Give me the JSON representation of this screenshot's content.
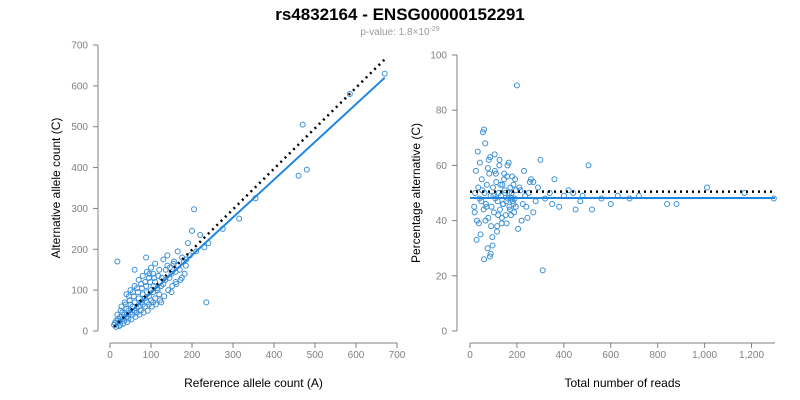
{
  "figure": {
    "title": "rs4832164 - ENSG00000152291",
    "subtitle_prefix": "p-value: 1.8×10",
    "subtitle_exponent": "-29"
  },
  "colors": {
    "points": "#3a8fd9",
    "fit_line": "#1f86e0",
    "reference_line": "#000000",
    "axis": "#808080"
  },
  "chart_data": [
    {
      "type": "scatter",
      "title": "",
      "xlabel": "Reference allele count (A)",
      "ylabel": "Alternative allele count (C)",
      "xlim": [
        0,
        700
      ],
      "ylim": [
        0,
        700
      ],
      "xticks": [
        0,
        100,
        200,
        300,
        400,
        500,
        600,
        700
      ],
      "yticks": [
        0,
        100,
        200,
        300,
        400,
        500,
        600,
        700
      ],
      "xtick_labels": [
        "0",
        "100",
        "200",
        "300",
        "400",
        "500",
        "600",
        "700"
      ],
      "ytick_labels": [
        "0",
        "100",
        "200",
        "300",
        "400",
        "500",
        "600",
        "700"
      ],
      "grid": false,
      "fit_line": {
        "x": [
          10,
          670
        ],
        "y": [
          10,
          620
        ],
        "style": "solid"
      },
      "reference_line": {
        "x": [
          10,
          670
        ],
        "y": [
          10,
          665
        ],
        "style": "dotted"
      },
      "points": [
        [
          670,
          630
        ],
        [
          585,
          580
        ],
        [
          470,
          505
        ],
        [
          480,
          395
        ],
        [
          460,
          380
        ],
        [
          355,
          325
        ],
        [
          315,
          275
        ],
        [
          205,
          298
        ],
        [
          235,
          70
        ],
        [
          18,
          170
        ],
        [
          220,
          235
        ],
        [
          200,
          245
        ],
        [
          275,
          250
        ],
        [
          190,
          215
        ],
        [
          230,
          205
        ],
        [
          165,
          195
        ],
        [
          155,
          165
        ],
        [
          140,
          160
        ],
        [
          120,
          150
        ],
        [
          105,
          140
        ],
        [
          95,
          130
        ],
        [
          110,
          120
        ],
        [
          130,
          115
        ],
        [
          150,
          140
        ],
        [
          170,
          150
        ],
        [
          180,
          170
        ],
        [
          100,
          100
        ],
        [
          90,
          95
        ],
        [
          80,
          90
        ],
        [
          70,
          80
        ],
        [
          60,
          70
        ],
        [
          50,
          65
        ],
        [
          40,
          55
        ],
        [
          30,
          45
        ],
        [
          25,
          35
        ],
        [
          20,
          30
        ],
        [
          15,
          25
        ],
        [
          12,
          20
        ],
        [
          10,
          15
        ],
        [
          35,
          40
        ],
        [
          45,
          50
        ],
        [
          55,
          60
        ],
        [
          65,
          55
        ],
        [
          75,
          70
        ],
        [
          85,
          80
        ],
        [
          95,
          85
        ],
        [
          105,
          95
        ],
        [
          115,
          105
        ],
        [
          125,
          110
        ],
        [
          135,
          125
        ],
        [
          145,
          130
        ],
        [
          160,
          145
        ],
        [
          120,
          90
        ],
        [
          110,
          80
        ],
        [
          100,
          75
        ],
        [
          90,
          70
        ],
        [
          80,
          65
        ],
        [
          70,
          60
        ],
        [
          60,
          50
        ],
        [
          50,
          45
        ],
        [
          40,
          35
        ],
        [
          30,
          30
        ],
        [
          20,
          20
        ],
        [
          25,
          15
        ],
        [
          35,
          25
        ],
        [
          45,
          30
        ],
        [
          55,
          40
        ],
        [
          65,
          45
        ],
        [
          75,
          50
        ],
        [
          85,
          60
        ],
        [
          95,
          65
        ],
        [
          105,
          70
        ],
        [
          60,
          110
        ],
        [
          50,
          100
        ],
        [
          40,
          90
        ],
        [
          70,
          125
        ],
        [
          80,
          135
        ],
        [
          90,
          145
        ],
        [
          100,
          155
        ],
        [
          110,
          165
        ],
        [
          130,
          175
        ],
        [
          140,
          185
        ],
        [
          125,
          70
        ],
        [
          150,
          95
        ],
        [
          160,
          120
        ],
        [
          175,
          130
        ],
        [
          185,
          160
        ],
        [
          195,
          185
        ],
        [
          210,
          195
        ],
        [
          240,
          215
        ],
        [
          28,
          60
        ],
        [
          38,
          65
        ],
        [
          48,
          75
        ],
        [
          58,
          85
        ],
        [
          68,
          95
        ],
        [
          78,
          105
        ],
        [
          88,
          110
        ],
        [
          98,
          120
        ],
        [
          108,
          130
        ],
        [
          118,
          135
        ],
        [
          15,
          10
        ],
        [
          22,
          12
        ],
        [
          32,
          18
        ],
        [
          42,
          22
        ],
        [
          52,
          28
        ],
        [
          62,
          35
        ],
        [
          72,
          40
        ],
        [
          82,
          45
        ],
        [
          92,
          50
        ],
        [
          102,
          60
        ],
        [
          112,
          65
        ],
        [
          122,
          75
        ],
        [
          132,
          85
        ],
        [
          142,
          100
        ],
        [
          152,
          110
        ],
        [
          162,
          115
        ],
        [
          172,
          125
        ],
        [
          182,
          140
        ],
        [
          18,
          40
        ],
        [
          26,
          50
        ],
        [
          36,
          70
        ],
        [
          46,
          85
        ],
        [
          56,
          95
        ],
        [
          66,
          105
        ],
        [
          76,
          115
        ],
        [
          86,
          120
        ],
        [
          96,
          140
        ],
        [
          106,
          110
        ],
        [
          116,
          100
        ],
        [
          126,
          130
        ],
        [
          136,
          150
        ],
        [
          146,
          155
        ],
        [
          156,
          170
        ],
        [
          166,
          160
        ],
        [
          176,
          180
        ],
        [
          186,
          175
        ],
        [
          88,
          180
        ],
        [
          60,
          150
        ]
      ]
    },
    {
      "type": "scatter",
      "title": "",
      "xlabel": "Total number of reads",
      "ylabel": "Percentage alternative (C)",
      "xlim": [
        0,
        1300
      ],
      "ylim": [
        0,
        100
      ],
      "xticks": [
        0,
        200,
        400,
        600,
        800,
        1000,
        1200
      ],
      "yticks": [
        0,
        20,
        40,
        60,
        80,
        100
      ],
      "xtick_labels": [
        "0",
        "200",
        "400",
        "600",
        "800",
        "1,000",
        "1,200"
      ],
      "ytick_labels": [
        "0",
        "20",
        "40",
        "60",
        "80",
        "100"
      ],
      "grid": false,
      "fit_line": {
        "x": [
          0,
          1300
        ],
        "y": [
          48.2,
          48.2
        ],
        "style": "solid"
      },
      "reference_line": {
        "x": [
          0,
          1300
        ],
        "y": [
          50.5,
          50.5
        ],
        "style": "dotted"
      },
      "points": [
        [
          1295,
          48
        ],
        [
          1170,
          50
        ],
        [
          1010,
          52
        ],
        [
          880,
          46
        ],
        [
          840,
          46
        ],
        [
          680,
          48
        ],
        [
          630,
          49
        ],
        [
          505,
          60
        ],
        [
          470,
          47
        ],
        [
          450,
          44
        ],
        [
          420,
          51
        ],
        [
          400,
          49
        ],
        [
          380,
          45
        ],
        [
          360,
          55
        ],
        [
          340,
          50
        ],
        [
          320,
          48
        ],
        [
          310,
          22
        ],
        [
          300,
          62
        ],
        [
          290,
          52
        ],
        [
          280,
          47
        ],
        [
          270,
          43
        ],
        [
          260,
          55
        ],
        [
          250,
          50
        ],
        [
          240,
          45
        ],
        [
          230,
          58
        ],
        [
          220,
          40
        ],
        [
          200,
          89
        ],
        [
          210,
          52
        ],
        [
          190,
          48
        ],
        [
          180,
          56
        ],
        [
          170,
          44
        ],
        [
          160,
          60
        ],
        [
          150,
          50
        ],
        [
          140,
          46
        ],
        [
          130,
          53
        ],
        [
          120,
          42
        ],
        [
          110,
          57
        ],
        [
          100,
          49
        ],
        [
          90,
          38
        ],
        [
          80,
          62
        ],
        [
          70,
          45
        ],
        [
          60,
          73
        ],
        [
          55,
          72
        ],
        [
          50,
          55
        ],
        [
          45,
          35
        ],
        [
          40,
          48
        ],
        [
          35,
          52
        ],
        [
          30,
          40
        ],
        [
          25,
          58
        ],
        [
          20,
          43
        ],
        [
          65,
          68
        ],
        [
          75,
          30
        ],
        [
          85,
          27
        ],
        [
          95,
          34
        ],
        [
          105,
          64
        ],
        [
          115,
          36
        ],
        [
          125,
          60
        ],
        [
          135,
          39
        ],
        [
          145,
          55
        ],
        [
          155,
          47
        ],
        [
          165,
          61
        ],
        [
          175,
          42
        ],
        [
          185,
          53
        ],
        [
          195,
          45
        ],
        [
          205,
          37
        ],
        [
          215,
          51
        ],
        [
          225,
          46
        ],
        [
          235,
          49
        ],
        [
          245,
          41
        ],
        [
          255,
          54
        ],
        [
          48,
          47
        ],
        [
          52,
          51
        ],
        [
          58,
          44
        ],
        [
          62,
          50
        ],
        [
          68,
          46
        ],
        [
          72,
          53
        ],
        [
          78,
          41
        ],
        [
          82,
          57
        ],
        [
          88,
          49
        ],
        [
          92,
          45
        ],
        [
          98,
          52
        ],
        [
          102,
          43
        ],
        [
          108,
          48
        ],
        [
          112,
          54
        ],
        [
          118,
          47
        ],
        [
          122,
          50
        ],
        [
          128,
          44
        ],
        [
          132,
          49
        ],
        [
          138,
          53
        ],
        [
          142,
          46
        ],
        [
          148,
          51
        ],
        [
          152,
          42
        ],
        [
          158,
          56
        ],
        [
          162,
          48
        ],
        [
          168,
          45
        ],
        [
          172,
          52
        ],
        [
          178,
          50
        ],
        [
          182,
          47
        ],
        [
          188,
          43
        ],
        [
          192,
          55
        ],
        [
          42,
          61
        ],
        [
          38,
          39
        ],
        [
          33,
          65
        ],
        [
          28,
          33
        ],
        [
          22,
          50
        ],
        [
          18,
          45
        ],
        [
          66,
          40
        ],
        [
          76,
          59
        ],
        [
          86,
          63
        ],
        [
          96,
          31
        ],
        [
          106,
          58
        ],
        [
          116,
          38
        ],
        [
          126,
          62
        ],
        [
          136,
          41
        ],
        [
          146,
          57
        ],
        [
          156,
          39
        ],
        [
          166,
          50
        ],
        [
          176,
          48
        ],
        [
          186,
          46
        ],
        [
          196,
          51
        ],
        [
          60,
          26
        ],
        [
          88,
          28
        ],
        [
          350,
          46
        ],
        [
          440,
          50
        ],
        [
          560,
          48
        ],
        [
          600,
          46
        ],
        [
          720,
          49
        ],
        [
          520,
          44
        ],
        [
          480,
          49
        ],
        [
          270,
          54
        ]
      ]
    }
  ]
}
